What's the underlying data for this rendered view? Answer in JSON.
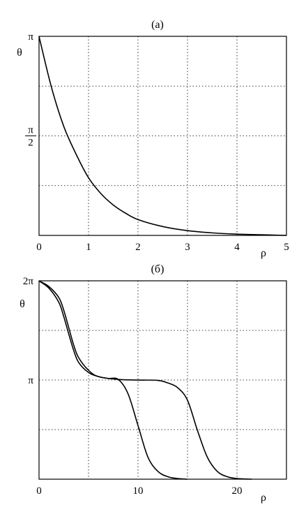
{
  "chart_data": [
    {
      "type": "line",
      "title": "(а)",
      "xlabel": "ρ",
      "ylabel": "θ",
      "xlim": [
        0,
        5
      ],
      "ylim": [
        0,
        3.14159
      ],
      "grid": true,
      "x_ticks": [
        {
          "value": 0,
          "label": "0"
        },
        {
          "value": 1,
          "label": "1"
        },
        {
          "value": 2,
          "label": "2"
        },
        {
          "value": 3,
          "label": "3"
        },
        {
          "value": 4,
          "label": "4"
        },
        {
          "value": 5,
          "label": "5"
        }
      ],
      "y_ticks": [
        {
          "value": 3.14159,
          "label": "π"
        },
        {
          "value": 1.5708,
          "num": "π",
          "den": "2"
        }
      ],
      "y_grid": [
        0.7854,
        1.5708,
        2.3562
      ],
      "series": [
        {
          "x": [
            0,
            0.25,
            0.5,
            0.75,
            1.0,
            1.25,
            1.5,
            1.75,
            2.0,
            2.5,
            3.0,
            3.5,
            4.0,
            4.5,
            5.0
          ],
          "y": [
            3.14,
            2.34,
            1.72,
            1.28,
            0.91,
            0.66,
            0.48,
            0.35,
            0.25,
            0.14,
            0.075,
            0.04,
            0.02,
            0.01,
            0.0
          ]
        }
      ]
    },
    {
      "type": "line",
      "title": "(б)",
      "xlabel": "ρ",
      "ylabel": "θ",
      "xlim": [
        0,
        25
      ],
      "ylim": [
        0,
        6.28318
      ],
      "grid": true,
      "x_ticks": [
        {
          "value": 0,
          "label": "0"
        },
        {
          "value": 10,
          "label": "10"
        },
        {
          "value": 20,
          "label": "20"
        }
      ],
      "x_grid": [
        5,
        10,
        15,
        20
      ],
      "y_ticks": [
        {
          "value": 6.28318,
          "label": "2π"
        },
        {
          "value": 3.14159,
          "label": "π"
        }
      ],
      "y_grid": [
        1.5708,
        3.14159,
        4.7124
      ],
      "series": [
        {
          "x": [
            0,
            1,
            2,
            2.5,
            3,
            3.5,
            4,
            5,
            6,
            7,
            8,
            9,
            10,
            11,
            12,
            13,
            14,
            15
          ],
          "y": [
            6.28,
            6.05,
            5.6,
            5.15,
            4.6,
            4.08,
            3.7,
            3.38,
            3.25,
            3.19,
            3.16,
            2.7,
            1.7,
            0.7,
            0.25,
            0.08,
            0.02,
            0.0
          ]
        },
        {
          "x": [
            0,
            1,
            2,
            2.5,
            3,
            3.5,
            4,
            5,
            6,
            8,
            10,
            12,
            13,
            14,
            15,
            16,
            17,
            18,
            19,
            20,
            21.5
          ],
          "y": [
            6.28,
            6.1,
            5.75,
            5.35,
            4.8,
            4.25,
            3.85,
            3.45,
            3.25,
            3.16,
            3.14,
            3.13,
            3.05,
            2.9,
            2.5,
            1.55,
            0.7,
            0.25,
            0.08,
            0.02,
            0.0
          ]
        }
      ]
    }
  ]
}
